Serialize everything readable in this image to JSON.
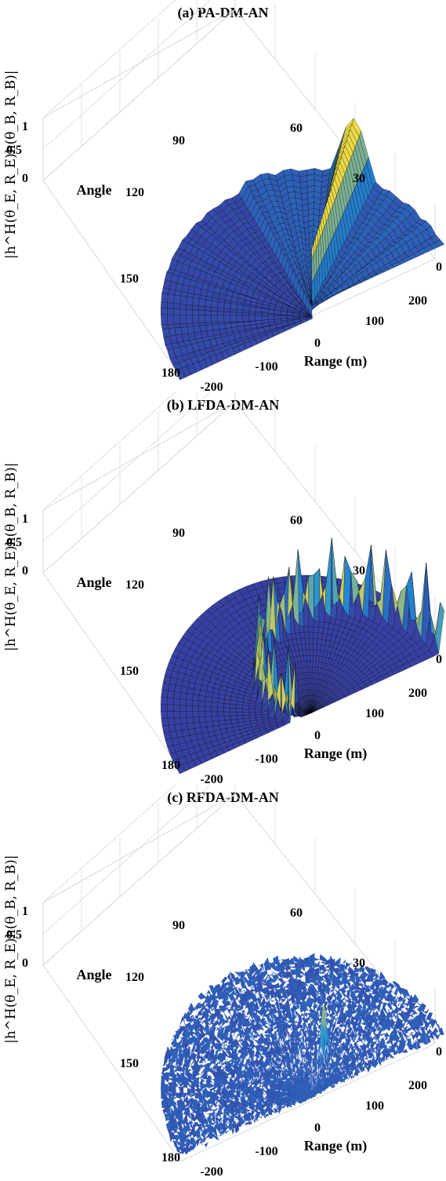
{
  "panels": [
    {
      "title": "(a) PA-DM-AN",
      "zlabel": "|h^H(θ_E, R_E)h(θ_B, R_B)|",
      "angle_label": "Angle",
      "range_label": "Range (m)",
      "ztick_labels": [
        "1",
        "0.5",
        "0"
      ],
      "angle_tick_labels": [
        "90",
        "60",
        "30",
        "0",
        "120",
        "150",
        "180"
      ],
      "range_tick_labels": [
        "-200",
        "-100",
        "0",
        "100",
        "200"
      ]
    },
    {
      "title": "(b) LFDA-DM-AN",
      "zlabel": "|h^H(θ_E, R_E)h(θ_B, R_B)|",
      "angle_label": "Angle",
      "range_label": "Range (m)",
      "ztick_labels": [
        "1",
        "0.5",
        "0"
      ],
      "angle_tick_labels": [
        "90",
        "60",
        "30",
        "0",
        "120",
        "150",
        "180"
      ],
      "range_tick_labels": [
        "-200",
        "-100",
        "0",
        "100",
        "200"
      ]
    },
    {
      "title": "(c) RFDA-DM-AN",
      "zlabel": "|h^H(θ_E, R_E)h(θ_B, R_B)|",
      "angle_label": "Angle",
      "range_label": "Range (m)",
      "ztick_labels": [
        "1",
        "0.5",
        "0"
      ],
      "angle_tick_labels": [
        "90",
        "60",
        "30",
        "0",
        "120",
        "150",
        "180"
      ],
      "range_tick_labels": [
        "-200",
        "-100",
        "0",
        "100",
        "200"
      ]
    }
  ],
  "colors": {
    "surface_low": "#3a3a9e",
    "surface_mid": "#1f8fd8",
    "surface_high": "#f9e03a",
    "grid": "#d9d9d9",
    "mesh": "#000000"
  },
  "chart_data": [
    {
      "type": "surface",
      "title": "(a) PA-DM-AN",
      "xlabel": "Range (m)",
      "ylabel": "Angle",
      "zlabel": "|h^H(θ_E, R_E)h(θ_B, R_B)|",
      "xlim": [
        -200,
        200
      ],
      "ylim": [
        0,
        180
      ],
      "zlim": [
        0,
        1
      ],
      "peak": {
        "angle": 45,
        "value": 1.0
      },
      "description_values": {
        "sidelobe_level": 0.2
      },
      "angle_profile": {
        "angles": [
          0,
          15,
          30,
          40,
          45,
          50,
          60,
          75,
          90,
          120,
          150,
          180
        ],
        "values": [
          0.2,
          0.22,
          0.3,
          0.6,
          1.0,
          0.6,
          0.25,
          0.2,
          0.2,
          0.1,
          0.1,
          0.1
        ]
      }
    },
    {
      "type": "surface",
      "title": "(b) LFDA-DM-AN",
      "xlabel": "Range (m)",
      "ylabel": "Angle",
      "zlabel": "|h^H(θ_E, R_E)h(θ_B, R_B)|",
      "xlim": [
        -200,
        200
      ],
      "ylim": [
        0,
        180
      ],
      "zlim": [
        0,
        1
      ],
      "peak": {
        "angle": 45,
        "value": 1.0
      },
      "description_values": {
        "spiral_ridge_value": 1.0,
        "background": 0.05
      }
    },
    {
      "type": "surface",
      "title": "(c) RFDA-DM-AN",
      "xlabel": "Range (m)",
      "ylabel": "Angle",
      "zlabel": "|h^H(θ_E, R_E)h(θ_B, R_B)|",
      "xlim": [
        -200,
        200
      ],
      "ylim": [
        0,
        180
      ],
      "zlim": [
        0,
        1
      ],
      "peak": {
        "angle": 45,
        "range": 100,
        "value": 0.6
      },
      "description_values": {
        "noise_floor": 0.15
      }
    }
  ]
}
